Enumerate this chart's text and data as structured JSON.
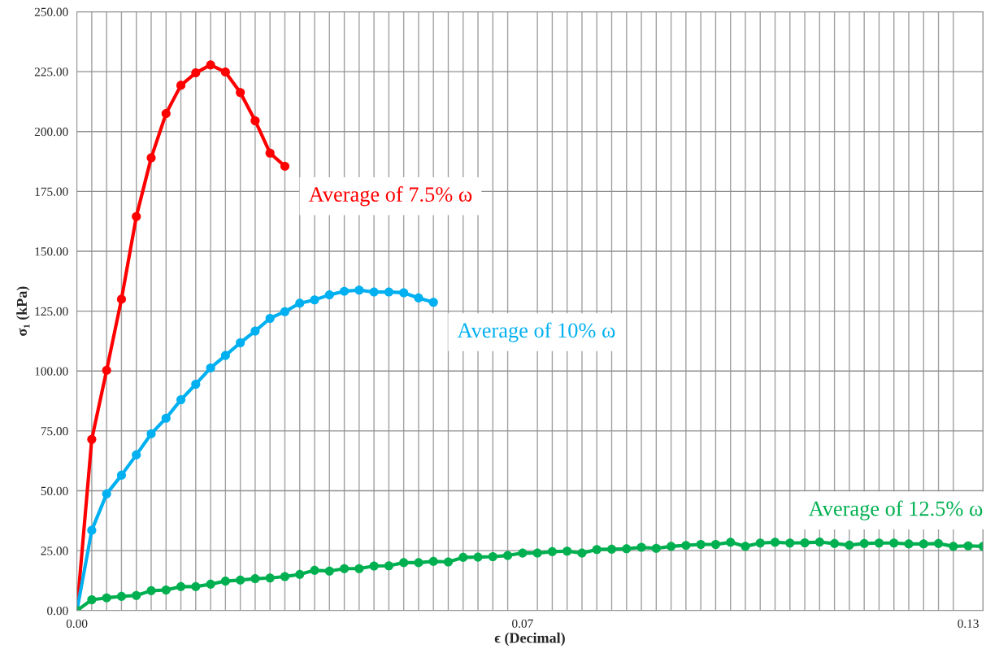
{
  "chart_data": {
    "type": "line",
    "xlabel": "ϵ (Decimal)",
    "ylabel": "σ₁ (kPa)",
    "categories": [
      "0.00",
      null,
      null,
      null,
      null,
      null,
      null,
      null,
      null,
      null,
      null,
      null,
      null,
      null,
      null,
      null,
      null,
      null,
      null,
      null,
      null,
      null,
      null,
      null,
      null,
      null,
      null,
      null,
      null,
      null,
      "0.07",
      null,
      null,
      null,
      null,
      null,
      null,
      null,
      null,
      null,
      null,
      null,
      null,
      null,
      null,
      null,
      null,
      null,
      null,
      null,
      null,
      null,
      null,
      null,
      null,
      null,
      null,
      null,
      null,
      null,
      "0.13",
      null
    ],
    "ylim": [
      0,
      250
    ],
    "yticks": [
      {
        "value": 0,
        "label": "0.00"
      },
      {
        "value": 25,
        "label": "25.00"
      },
      {
        "value": 50,
        "label": "50.00"
      },
      {
        "value": 75,
        "label": "75.00"
      },
      {
        "value": 100,
        "label": "100.00"
      },
      {
        "value": 125,
        "label": "125.00"
      },
      {
        "value": 150,
        "label": "150.00"
      },
      {
        "value": 175,
        "label": "175.00"
      },
      {
        "value": 200,
        "label": "200.00"
      },
      {
        "value": 225,
        "label": "225.00"
      },
      {
        "value": 250,
        "label": "250.00"
      }
    ],
    "grid": true,
    "legend": false,
    "marker": "circle",
    "line_style": "solid",
    "series": [
      {
        "name": "Average of 7.5% ω",
        "color": "#ff0000",
        "values": [
          0,
          71.5,
          100.3,
          130,
          164.5,
          189,
          207.5,
          219.3,
          224.5,
          227.8,
          224.8,
          216.3,
          204.5,
          191,
          185.5,
          null,
          null,
          null,
          null,
          null,
          null,
          null,
          null,
          null,
          null,
          null,
          null,
          null,
          null,
          null,
          null,
          null,
          null,
          null,
          null,
          null,
          null,
          null,
          null,
          null,
          null,
          null,
          null,
          null,
          null,
          null,
          null,
          null,
          null,
          null,
          null,
          null,
          null,
          null,
          null,
          null,
          null,
          null,
          null,
          null,
          null,
          null
        ]
      },
      {
        "name": "Average of 10% ω",
        "color": "#00b0f0",
        "values": [
          0,
          33.5,
          48.7,
          56.5,
          65,
          73.8,
          80.3,
          88,
          94.5,
          101.3,
          106.5,
          111.8,
          116.7,
          122,
          124.8,
          128.3,
          129.7,
          131.8,
          133.3,
          133.8,
          133,
          133,
          132.7,
          130.5,
          128.7,
          null,
          null,
          null,
          null,
          null,
          null,
          null,
          null,
          null,
          null,
          null,
          null,
          null,
          null,
          null,
          null,
          null,
          null,
          null,
          null,
          null,
          null,
          null,
          null,
          null,
          null,
          null,
          null,
          null,
          null,
          null,
          null,
          null,
          null,
          null,
          null,
          null
        ]
      },
      {
        "name": "Average of 12.5% ω",
        "color": "#00b050",
        "values": [
          0,
          4.5,
          5.3,
          5.9,
          6.3,
          8.3,
          8.6,
          10,
          10,
          11,
          12.3,
          12.7,
          13.3,
          13.6,
          14.2,
          15.1,
          16.8,
          16.5,
          17.5,
          17.5,
          18.6,
          18.7,
          20,
          20,
          20.5,
          20.3,
          22.2,
          22.3,
          22.5,
          23,
          24,
          24,
          24.6,
          24.8,
          24,
          25.5,
          25.6,
          25.8,
          26.4,
          26,
          26.8,
          27.2,
          27.6,
          27.6,
          28.5,
          26.8,
          28.2,
          28.5,
          28.2,
          28.3,
          28.6,
          28,
          27.3,
          28,
          28.2,
          28.2,
          27.8,
          27.8,
          28,
          26.8,
          27,
          26.8
        ]
      }
    ]
  }
}
